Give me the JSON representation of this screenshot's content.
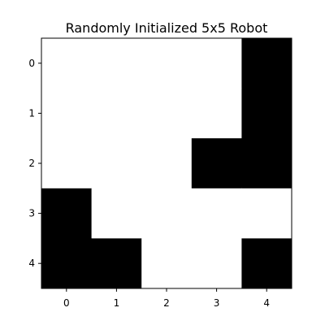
{
  "chart_data": {
    "type": "heatmap",
    "title": "Randomly Initialized 5x5 Robot",
    "xlabel": "",
    "ylabel": "",
    "x_ticks": [
      "0",
      "1",
      "2",
      "3",
      "4"
    ],
    "y_ticks": [
      "0",
      "1",
      "2",
      "3",
      "4"
    ],
    "colormap": {
      "0": "#ffffff",
      "1": "#000000"
    },
    "grid": false,
    "values": [
      [
        0,
        0,
        0,
        0,
        1
      ],
      [
        0,
        0,
        0,
        0,
        1
      ],
      [
        0,
        0,
        0,
        1,
        1
      ],
      [
        1,
        0,
        0,
        0,
        0
      ],
      [
        1,
        1,
        0,
        0,
        1
      ]
    ]
  }
}
